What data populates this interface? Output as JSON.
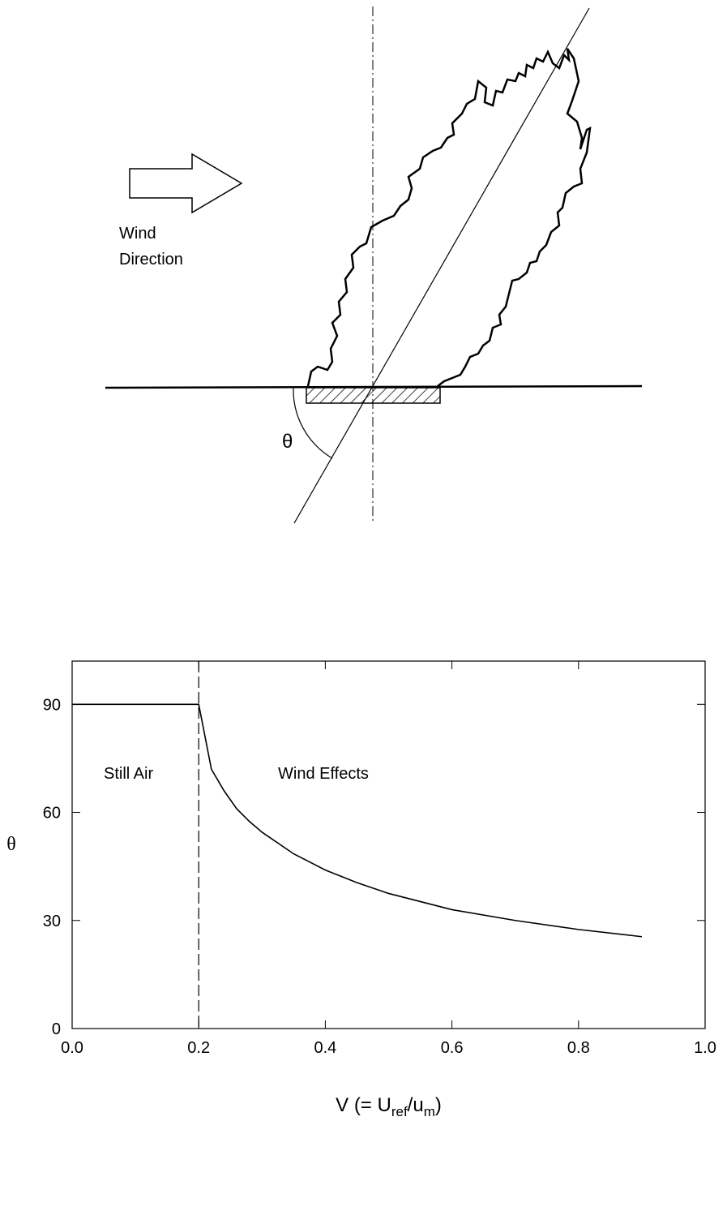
{
  "diagram": {
    "wind_label": [
      "Wind",
      "Direction"
    ],
    "angle_label": "θ"
  },
  "chart_data": {
    "type": "line",
    "x": [
      0.0,
      0.2,
      0.22,
      0.24,
      0.26,
      0.28,
      0.3,
      0.35,
      0.4,
      0.45,
      0.5,
      0.6,
      0.7,
      0.8,
      0.9
    ],
    "values": [
      90,
      90,
      72,
      66,
      61,
      57.5,
      54.5,
      48.5,
      44,
      40.5,
      37.5,
      33,
      30,
      27.5,
      25.5
    ],
    "color": "#000000",
    "xlim": [
      0,
      1
    ],
    "xticks": [
      {
        "value": 0,
        "label": "0.0"
      },
      0.2,
      0.4,
      0.6,
      0.8,
      {
        "value": 1,
        "label": "1.0"
      }
    ],
    "ylim": [
      0,
      102
    ],
    "yticks": [
      0,
      30,
      60,
      90
    ],
    "ylabel": "θ",
    "xlabel_parts": [
      "V (= U",
      "ref",
      "/u",
      "m",
      ")"
    ],
    "vline": 0.2,
    "annotations": [
      "Still Air",
      "Wind Effects"
    ]
  }
}
